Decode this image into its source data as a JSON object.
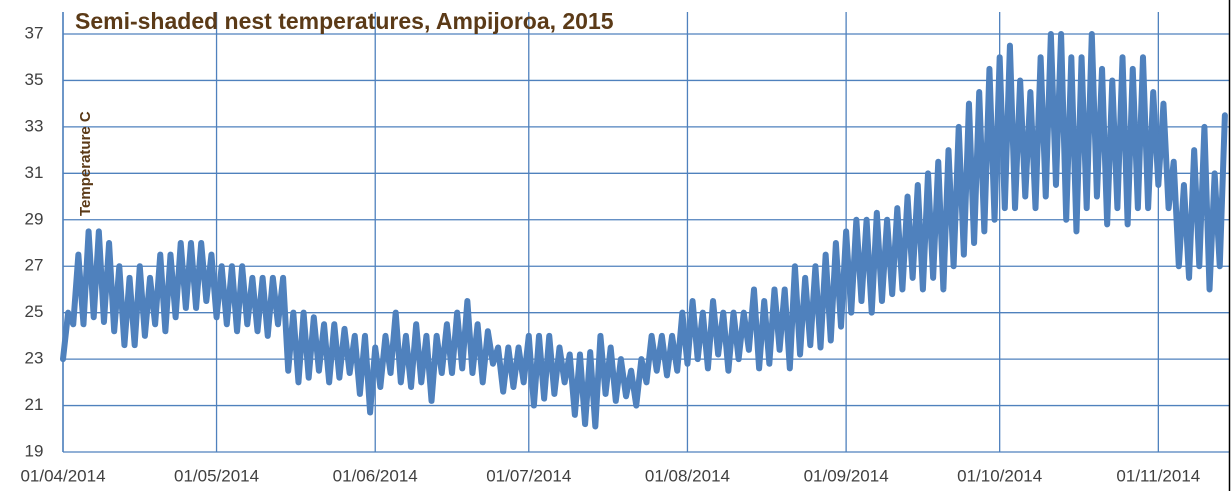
{
  "chart_data": {
    "type": "line",
    "title": "Semi-shaded nest temperatures, Ampijoroa, 2015",
    "y_label": "Temperature C",
    "color": "#4f81bd",
    "grid": true,
    "xlim": [
      "2014-04-01",
      "2014-11-15"
    ],
    "xticks": [
      {
        "value": "2014-04-01",
        "label": "01/04/2014"
      },
      {
        "value": "2014-05-01",
        "label": "01/05/2014"
      },
      {
        "value": "2014-06-01",
        "label": "01/06/2014"
      },
      {
        "value": "2014-07-01",
        "label": "01/07/2014"
      },
      {
        "value": "2014-08-01",
        "label": "01/08/2014"
      },
      {
        "value": "2014-09-01",
        "label": "01/09/2014"
      },
      {
        "value": "2014-10-01",
        "label": "01/10/2014"
      },
      {
        "value": "2014-11-01",
        "label": "01/11/2014"
      }
    ],
    "ylim": [
      19,
      37
    ],
    "yticks": [
      19,
      21,
      23,
      25,
      27,
      29,
      31,
      33,
      35,
      37
    ],
    "x": [
      "2014-04-01",
      "2014-04-02",
      "2014-04-03",
      "2014-04-04",
      "2014-04-05",
      "2014-04-06",
      "2014-04-07",
      "2014-04-08",
      "2014-04-09",
      "2014-04-10",
      "2014-04-11",
      "2014-04-12",
      "2014-04-13",
      "2014-04-14",
      "2014-04-15",
      "2014-04-16",
      "2014-04-17",
      "2014-04-18",
      "2014-04-19",
      "2014-04-20",
      "2014-04-21",
      "2014-04-22",
      "2014-04-23",
      "2014-04-24",
      "2014-04-25",
      "2014-04-26",
      "2014-04-27",
      "2014-04-28",
      "2014-04-29",
      "2014-04-30",
      "2014-05-01",
      "2014-05-02",
      "2014-05-03",
      "2014-05-04",
      "2014-05-05",
      "2014-05-06",
      "2014-05-07",
      "2014-05-08",
      "2014-05-09",
      "2014-05-10",
      "2014-05-11",
      "2014-05-12",
      "2014-05-13",
      "2014-05-14",
      "2014-05-15",
      "2014-05-16",
      "2014-05-17",
      "2014-05-18",
      "2014-05-19",
      "2014-05-20",
      "2014-05-21",
      "2014-05-22",
      "2014-05-23",
      "2014-05-24",
      "2014-05-25",
      "2014-05-26",
      "2014-05-27",
      "2014-05-28",
      "2014-05-29",
      "2014-05-30",
      "2014-05-31",
      "2014-06-01",
      "2014-06-02",
      "2014-06-03",
      "2014-06-04",
      "2014-06-05",
      "2014-06-06",
      "2014-06-07",
      "2014-06-08",
      "2014-06-09",
      "2014-06-10",
      "2014-06-11",
      "2014-06-12",
      "2014-06-13",
      "2014-06-14",
      "2014-06-15",
      "2014-06-16",
      "2014-06-17",
      "2014-06-18",
      "2014-06-19",
      "2014-06-20",
      "2014-06-21",
      "2014-06-22",
      "2014-06-23",
      "2014-06-24",
      "2014-06-25",
      "2014-06-26",
      "2014-06-27",
      "2014-06-28",
      "2014-06-29",
      "2014-06-30",
      "2014-07-01",
      "2014-07-02",
      "2014-07-03",
      "2014-07-04",
      "2014-07-05",
      "2014-07-06",
      "2014-07-07",
      "2014-07-08",
      "2014-07-09",
      "2014-07-10",
      "2014-07-11",
      "2014-07-12",
      "2014-07-13",
      "2014-07-14",
      "2014-07-15",
      "2014-07-16",
      "2014-07-17",
      "2014-07-18",
      "2014-07-19",
      "2014-07-20",
      "2014-07-21",
      "2014-07-22",
      "2014-07-23",
      "2014-07-24",
      "2014-07-25",
      "2014-07-26",
      "2014-07-27",
      "2014-07-28",
      "2014-07-29",
      "2014-07-30",
      "2014-07-31",
      "2014-08-01",
      "2014-08-02",
      "2014-08-03",
      "2014-08-04",
      "2014-08-05",
      "2014-08-06",
      "2014-08-07",
      "2014-08-08",
      "2014-08-09",
      "2014-08-10",
      "2014-08-11",
      "2014-08-12",
      "2014-08-13",
      "2014-08-14",
      "2014-08-15",
      "2014-08-16",
      "2014-08-17",
      "2014-08-18",
      "2014-08-19",
      "2014-08-20",
      "2014-08-21",
      "2014-08-22",
      "2014-08-23",
      "2014-08-24",
      "2014-08-25",
      "2014-08-26",
      "2014-08-27",
      "2014-08-28",
      "2014-08-29",
      "2014-08-30",
      "2014-08-31",
      "2014-09-01",
      "2014-09-02",
      "2014-09-03",
      "2014-09-04",
      "2014-09-05",
      "2014-09-06",
      "2014-09-07",
      "2014-09-08",
      "2014-09-09",
      "2014-09-10",
      "2014-09-11",
      "2014-09-12",
      "2014-09-13",
      "2014-09-14",
      "2014-09-15",
      "2014-09-16",
      "2014-09-17",
      "2014-09-18",
      "2014-09-19",
      "2014-09-20",
      "2014-09-21",
      "2014-09-22",
      "2014-09-23",
      "2014-09-24",
      "2014-09-25",
      "2014-09-26",
      "2014-09-27",
      "2014-09-28",
      "2014-09-29",
      "2014-09-30",
      "2014-10-01",
      "2014-10-02",
      "2014-10-03",
      "2014-10-04",
      "2014-10-05",
      "2014-10-06",
      "2014-10-07",
      "2014-10-08",
      "2014-10-09",
      "2014-10-10",
      "2014-10-11",
      "2014-10-12",
      "2014-10-13",
      "2014-10-14",
      "2014-10-15",
      "2014-10-16",
      "2014-10-17",
      "2014-10-18",
      "2014-10-19",
      "2014-10-20",
      "2014-10-21",
      "2014-10-22",
      "2014-10-23",
      "2014-10-24",
      "2014-10-25",
      "2014-10-26",
      "2014-10-27",
      "2014-10-28",
      "2014-10-29",
      "2014-10-30",
      "2014-10-31",
      "2014-11-01",
      "2014-11-02",
      "2014-11-03",
      "2014-11-04",
      "2014-11-05",
      "2014-11-06",
      "2014-11-07",
      "2014-11-08",
      "2014-11-09",
      "2014-11-10",
      "2014-11-11",
      "2014-11-12",
      "2014-11-13",
      "2014-11-14"
    ],
    "values": [
      23,
      25,
      24.5,
      27.5,
      24.5,
      28.5,
      24.8,
      28.5,
      24.6,
      28,
      24.2,
      27,
      23.6,
      26.5,
      23.6,
      27,
      24,
      26.5,
      24.5,
      27.5,
      24.2,
      27.5,
      24.8,
      28,
      25.2,
      28,
      25.2,
      28,
      25.5,
      27.5,
      24.8,
      27,
      24.5,
      27,
      24.2,
      27,
      24.5,
      26.5,
      24.2,
      26.5,
      24,
      26.5,
      24.5,
      26.5,
      22.5,
      25,
      22,
      25,
      22.2,
      24.8,
      22.5,
      24.5,
      22,
      24.5,
      22.2,
      24.3,
      22.4,
      24,
      21.5,
      24,
      20.7,
      23.5,
      21.8,
      24,
      22.4,
      25,
      22,
      24,
      21.8,
      24.5,
      22,
      24,
      21.2,
      24,
      22.4,
      24.5,
      22.4,
      25,
      22.6,
      25.5,
      22.4,
      24.5,
      22,
      24.2,
      22.8,
      23.5,
      21.6,
      23.5,
      21.8,
      23.5,
      22,
      24,
      21,
      24,
      21.3,
      24,
      21.5,
      23.5,
      22,
      23.2,
      20.6,
      23.2,
      20.2,
      23.3,
      20.1,
      24,
      21.5,
      23.5,
      21.2,
      23,
      21.4,
      22.5,
      21,
      23,
      22,
      24,
      22.5,
      24,
      22.3,
      24,
      22.5,
      25,
      22.8,
      25.5,
      23,
      25,
      22.6,
      25.5,
      23.2,
      25,
      22.5,
      25,
      23,
      25,
      23.4,
      26,
      22.6,
      25.5,
      22.8,
      26,
      23.4,
      26,
      22.6,
      27,
      23.2,
      26.5,
      23.6,
      27,
      23.5,
      27.5,
      23.8,
      28,
      24.4,
      28.5,
      25,
      29,
      25.5,
      29,
      25,
      29.3,
      25.5,
      29,
      25.8,
      29.5,
      26,
      30,
      26.5,
      30.5,
      26,
      31,
      26.5,
      31.5,
      26,
      32,
      27,
      33,
      27.5,
      34,
      28,
      34.5,
      28.5,
      35.5,
      29,
      36,
      29.5,
      36.5,
      29.5,
      35,
      30,
      34.5,
      29.5,
      36,
      30,
      37,
      30.5,
      37,
      29,
      36,
      28.5,
      36,
      29.5,
      37,
      30,
      35.5,
      28.8,
      35,
      29.5,
      36,
      28.8,
      35.5,
      29.5,
      36,
      29.5,
      34.5,
      30.5,
      34,
      29.5,
      31.5,
      27,
      30.5,
      26.5,
      32,
      27,
      33,
      26,
      31,
      27,
      33.5
    ]
  }
}
